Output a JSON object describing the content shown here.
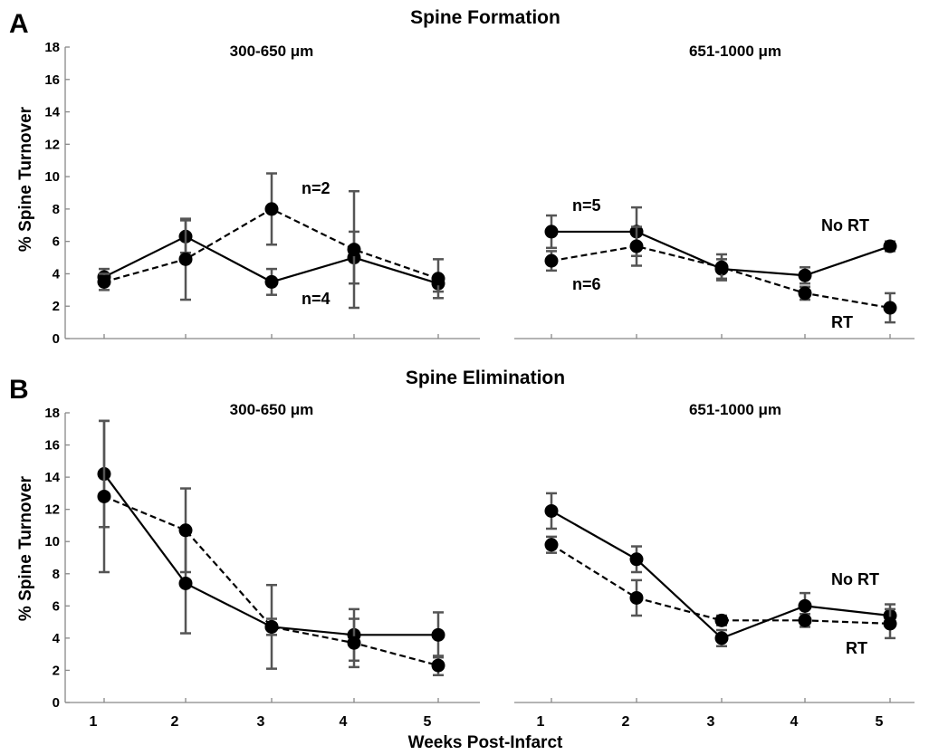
{
  "figure": {
    "x_axis_label": "Weeks Post-Infarct",
    "y_axis_label": "% Spine Turnover",
    "x_ticks": [
      "1",
      "2",
      "3",
      "4",
      "5"
    ],
    "y_ticks": [
      "0",
      "2",
      "4",
      "6",
      "8",
      "10",
      "12",
      "14",
      "16",
      "18"
    ]
  },
  "chart_data": [
    {
      "panel": "A",
      "title": "Spine Formation",
      "subplot": "left",
      "subtitle": "300-650 μm",
      "type": "line",
      "x": [
        1,
        2,
        3,
        4,
        5
      ],
      "ylim": [
        0,
        18
      ],
      "series": [
        {
          "line_style": "solid",
          "values": [
            3.8,
            6.3,
            3.5,
            5.0,
            3.4
          ],
          "errors": [
            0.5,
            1.0,
            0.8,
            1.6,
            0.5
          ]
        },
        {
          "line_style": "dashed",
          "values": [
            3.5,
            4.9,
            8.0,
            5.5,
            3.7
          ],
          "errors": [
            0.5,
            2.5,
            2.2,
            3.6,
            1.2
          ]
        }
      ],
      "annotations": [
        "n=2",
        "n=4"
      ]
    },
    {
      "panel": "A",
      "title": "Spine Formation",
      "subplot": "right",
      "subtitle": "651-1000 μm",
      "type": "line",
      "x": [
        1,
        2,
        3,
        4,
        5
      ],
      "ylim": [
        0,
        18
      ],
      "series": [
        {
          "name": "No RT",
          "line_style": "solid",
          "values": [
            6.6,
            6.6,
            4.3,
            3.9,
            5.7
          ],
          "errors": [
            1.0,
            1.5,
            0.6,
            0.5,
            0.3
          ]
        },
        {
          "name": "RT",
          "line_style": "dashed",
          "values": [
            4.8,
            5.7,
            4.4,
            2.8,
            1.9
          ],
          "errors": [
            0.6,
            1.2,
            0.8,
            0.4,
            0.9
          ]
        }
      ],
      "annotations": [
        "n=5",
        "n=6"
      ]
    },
    {
      "panel": "B",
      "title": "Spine Elimination",
      "subplot": "left",
      "subtitle": "300-650 μm",
      "type": "line",
      "x": [
        1,
        2,
        3,
        4,
        5
      ],
      "ylim": [
        0,
        18
      ],
      "series": [
        {
          "line_style": "solid",
          "values": [
            14.2,
            7.4,
            4.7,
            4.2,
            4.2
          ],
          "errors": [
            3.3,
            3.1,
            0.5,
            1.6,
            1.4
          ]
        },
        {
          "line_style": "dashed",
          "values": [
            12.8,
            10.7,
            4.7,
            3.7,
            2.3
          ],
          "errors": [
            4.7,
            2.6,
            2.6,
            1.5,
            0.6
          ]
        }
      ],
      "annotations": []
    },
    {
      "panel": "B",
      "title": "Spine Elimination",
      "subplot": "right",
      "subtitle": "651-1000 μm",
      "type": "line",
      "x": [
        1,
        2,
        3,
        4,
        5
      ],
      "ylim": [
        0,
        18
      ],
      "series": [
        {
          "name": "No RT",
          "line_style": "solid",
          "values": [
            11.9,
            8.9,
            4.0,
            6.0,
            5.4
          ],
          "errors": [
            1.1,
            0.8,
            0.5,
            0.8,
            0.7
          ]
        },
        {
          "name": "RT",
          "line_style": "dashed",
          "values": [
            9.8,
            6.5,
            5.1,
            5.1,
            4.9
          ],
          "errors": [
            0.5,
            1.1,
            0.3,
            0.4,
            0.9
          ]
        }
      ],
      "annotations": []
    }
  ]
}
